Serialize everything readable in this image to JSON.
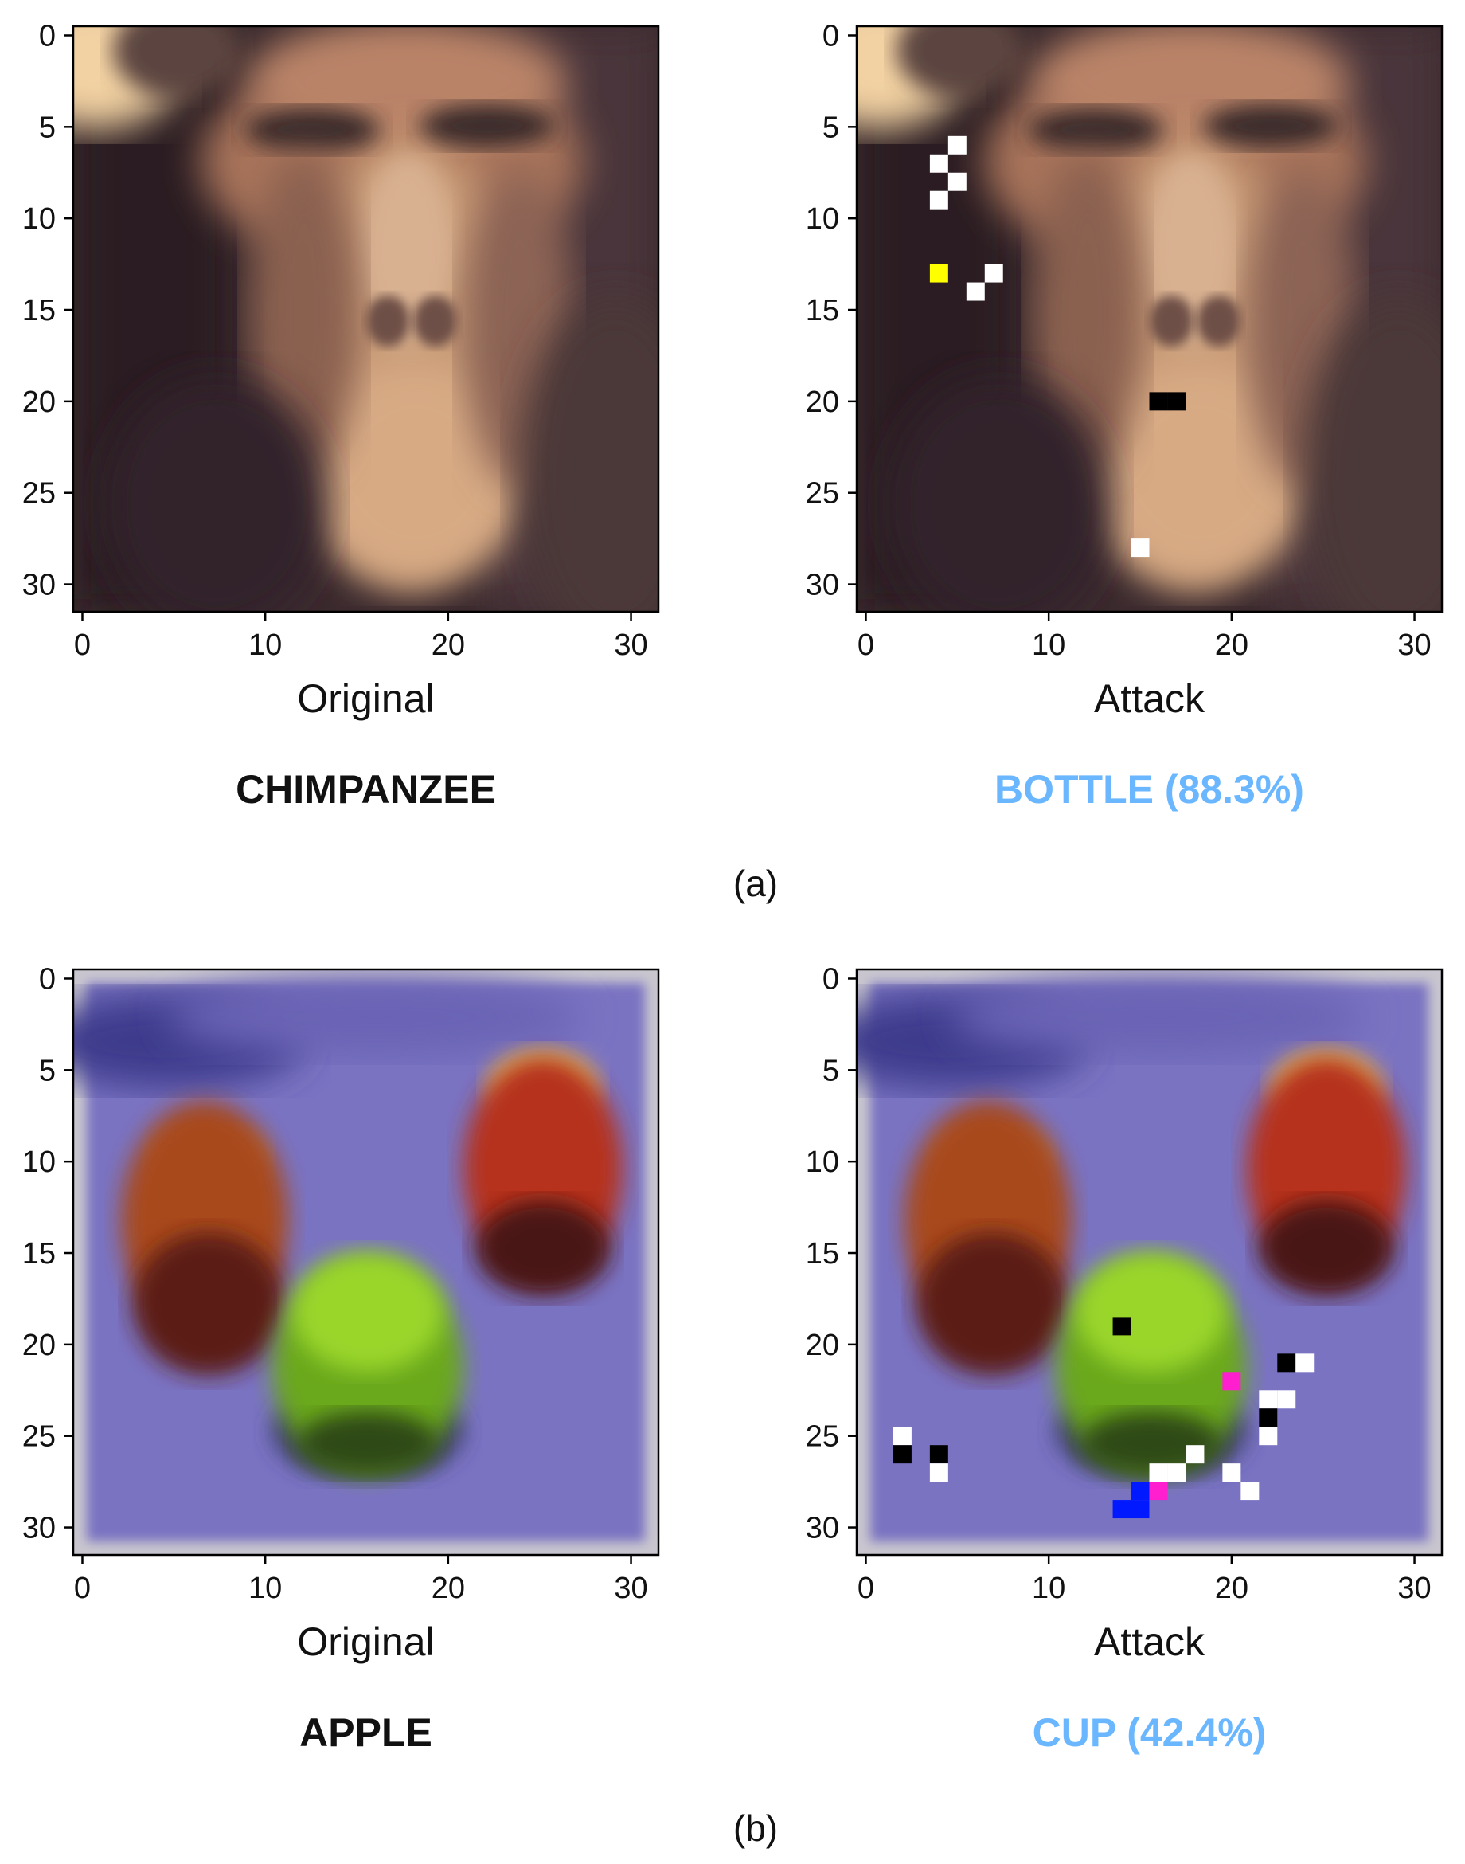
{
  "figure": {
    "subfigures": [
      {
        "label": "(a)",
        "panels": [
          {
            "xlabel": "Original",
            "prediction": "CHIMPANZEE",
            "prediction_color": "#111111",
            "image_subject": "chimpanzee-face",
            "perturbed_pixels": []
          },
          {
            "xlabel": "Attack",
            "prediction": "BOTTLE (88.3%)",
            "prediction_color": "#6ab7ff",
            "image_subject": "chimpanzee-face",
            "perturbed_pixels": [
              {
                "x": 5,
                "y": 6,
                "color": "#ffffff"
              },
              {
                "x": 4,
                "y": 7,
                "color": "#ffffff"
              },
              {
                "x": 5,
                "y": 8,
                "color": "#ffffff"
              },
              {
                "x": 4,
                "y": 9,
                "color": "#ffffff"
              },
              {
                "x": 4,
                "y": 13,
                "color": "#ffff00"
              },
              {
                "x": 7,
                "y": 13,
                "color": "#ffffff"
              },
              {
                "x": 6,
                "y": 14,
                "color": "#ffffff"
              },
              {
                "x": 16,
                "y": 20,
                "color": "#000000"
              },
              {
                "x": 17,
                "y": 20,
                "color": "#000000"
              },
              {
                "x": 15,
                "y": 28,
                "color": "#ffffff"
              }
            ]
          }
        ]
      },
      {
        "label": "(b)",
        "panels": [
          {
            "xlabel": "Original",
            "prediction": "APPLE",
            "prediction_color": "#111111",
            "image_subject": "three-apples",
            "perturbed_pixels": []
          },
          {
            "xlabel": "Attack",
            "prediction": "CUP (42.4%)",
            "prediction_color": "#6ab7ff",
            "image_subject": "three-apples",
            "perturbed_pixels": [
              {
                "x": 14,
                "y": 19,
                "color": "#000000"
              },
              {
                "x": 23,
                "y": 21,
                "color": "#000000"
              },
              {
                "x": 24,
                "y": 21,
                "color": "#ffffff"
              },
              {
                "x": 20,
                "y": 22,
                "color": "#ff1fcf"
              },
              {
                "x": 22,
                "y": 23,
                "color": "#ffffff"
              },
              {
                "x": 23,
                "y": 23,
                "color": "#ffffff"
              },
              {
                "x": 22,
                "y": 24,
                "color": "#000000"
              },
              {
                "x": 22,
                "y": 25,
                "color": "#ffffff"
              },
              {
                "x": 2,
                "y": 25,
                "color": "#ffffff"
              },
              {
                "x": 2,
                "y": 26,
                "color": "#000000"
              },
              {
                "x": 4,
                "y": 26,
                "color": "#000000"
              },
              {
                "x": 4,
                "y": 27,
                "color": "#ffffff"
              },
              {
                "x": 18,
                "y": 26,
                "color": "#ffffff"
              },
              {
                "x": 17,
                "y": 27,
                "color": "#ffffff"
              },
              {
                "x": 16,
                "y": 27,
                "color": "#ffffff"
              },
              {
                "x": 20,
                "y": 27,
                "color": "#ffffff"
              },
              {
                "x": 21,
                "y": 28,
                "color": "#ffffff"
              },
              {
                "x": 16,
                "y": 28,
                "color": "#ff1fcf"
              },
              {
                "x": 15,
                "y": 28,
                "color": "#0019ff"
              },
              {
                "x": 14,
                "y": 29,
                "color": "#0019ff"
              },
              {
                "x": 15,
                "y": 29,
                "color": "#0019ff"
              }
            ]
          }
        ]
      }
    ],
    "axis": {
      "ticks": [
        0,
        10,
        20,
        30
      ],
      "yticks": [
        0,
        5,
        10,
        15,
        20,
        25,
        30
      ],
      "grid": false
    }
  }
}
